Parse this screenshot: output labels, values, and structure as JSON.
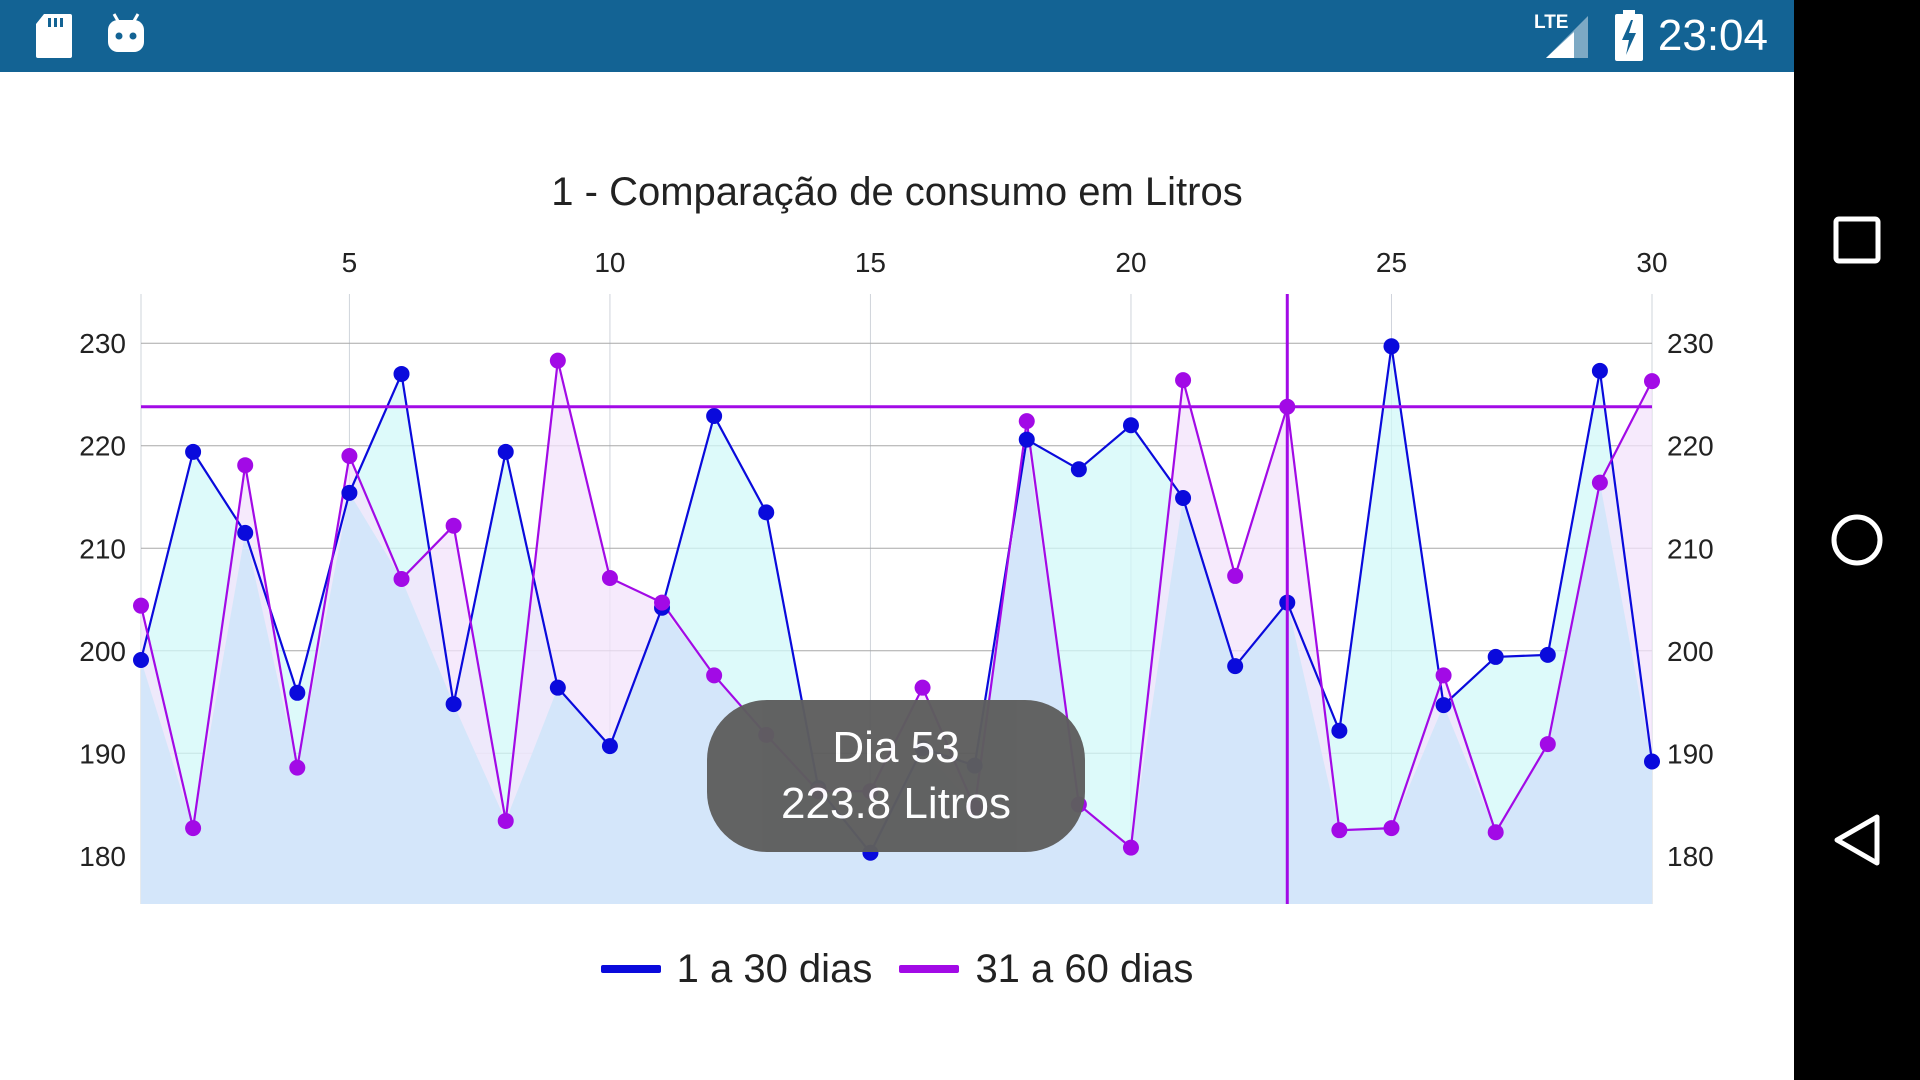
{
  "status_bar": {
    "time": "23:04",
    "network_label": "LTE",
    "icons": [
      "sd-card-icon",
      "android-debug-icon",
      "lte-signal-icon",
      "battery-charging-icon"
    ],
    "background": "#136394"
  },
  "nav_bar": {
    "buttons": [
      "recent-apps-icon",
      "home-icon",
      "back-icon"
    ],
    "background": "#000000"
  },
  "tooltip": {
    "line1": "Dia 53",
    "line2": "223.8 Litros"
  },
  "legend": {
    "items": [
      {
        "label": "1 a 30 dias",
        "color": "#0a0adc"
      },
      {
        "label": "31 a 60 dias",
        "color": "#a20ae6"
      }
    ]
  },
  "chart_data": {
    "type": "line",
    "title": "1 - Comparação de consumo em Litros",
    "x": [
      1,
      2,
      3,
      4,
      5,
      6,
      7,
      8,
      9,
      10,
      11,
      12,
      13,
      14,
      15,
      16,
      17,
      18,
      19,
      20,
      21,
      22,
      23,
      24,
      25,
      26,
      27,
      28,
      29,
      30
    ],
    "x_ticks": [
      "5",
      "10",
      "15",
      "20",
      "25",
      "30"
    ],
    "xlim": [
      1,
      30
    ],
    "ylim": [
      175.3,
      234.8
    ],
    "y_ticks": [
      "180",
      "190",
      "200",
      "210",
      "220",
      "230"
    ],
    "grid": true,
    "legend_position": "bottom",
    "series": [
      {
        "name": "1 a 30 dias",
        "color": "#0a0adc",
        "fill": "#d2f8f8",
        "values": [
          199.1,
          219.4,
          211.5,
          195.9,
          215.4,
          227.0,
          194.8,
          219.4,
          196.4,
          190.7,
          204.2,
          222.9,
          213.5,
          186.6,
          180.3,
          190.5,
          188.8,
          220.6,
          217.7,
          222.0,
          214.9,
          198.5,
          204.7,
          192.2,
          229.7,
          194.7,
          199.4,
          199.6,
          227.3,
          189.2
        ]
      },
      {
        "name": "31 a 60 dias",
        "color": "#a20ae6",
        "fill": "#f3e3fb",
        "values": [
          204.4,
          182.7,
          218.1,
          188.6,
          219.0,
          207.0,
          212.2,
          183.4,
          228.3,
          207.1,
          204.7,
          197.6,
          191.8,
          186.3,
          186.3,
          196.4,
          184.7,
          222.4,
          185.0,
          180.8,
          226.4,
          207.3,
          223.8,
          182.5,
          182.7,
          197.6,
          182.3,
          190.9,
          216.4,
          226.3
        ]
      }
    ],
    "highlight": {
      "series": "31 a 60 dias",
      "x": 23,
      "value": 223.8,
      "color": "#a20ae6"
    }
  }
}
